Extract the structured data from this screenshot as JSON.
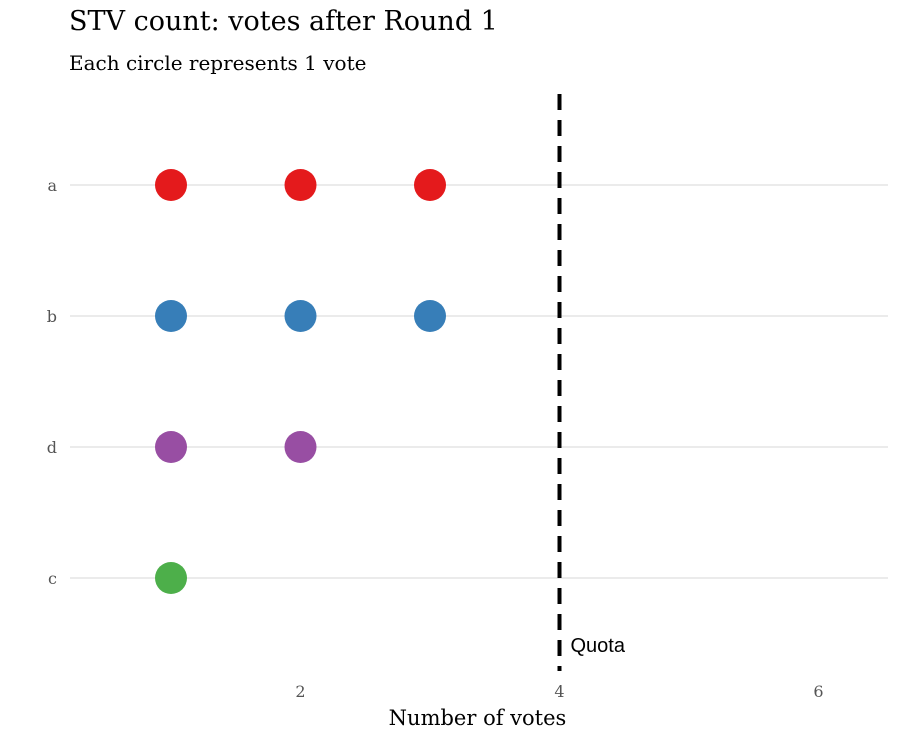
{
  "chart_data": {
    "type": "scatter",
    "title": "STV count: votes after Round 1",
    "subtitle": "Each circle represents 1 vote",
    "xlabel": "Number of votes",
    "ylabel": "",
    "xlim": [
      0.25,
      6.55
    ],
    "x_ticks": [
      "2",
      "4",
      "6"
    ],
    "y_categories": [
      "a",
      "b",
      "d",
      "c"
    ],
    "series": [
      {
        "category": "a",
        "values": [
          1,
          2,
          3
        ],
        "color": "#E41A1C"
      },
      {
        "category": "b",
        "values": [
          1,
          2,
          3
        ],
        "color": "#377EB8"
      },
      {
        "category": "d",
        "values": [
          1,
          2
        ],
        "color": "#984EA3"
      },
      {
        "category": "c",
        "values": [
          1
        ],
        "color": "#4DAF4A"
      }
    ],
    "quota": {
      "value": 4,
      "label": "Quota"
    },
    "grid": "horizontal",
    "legend": "none"
  }
}
